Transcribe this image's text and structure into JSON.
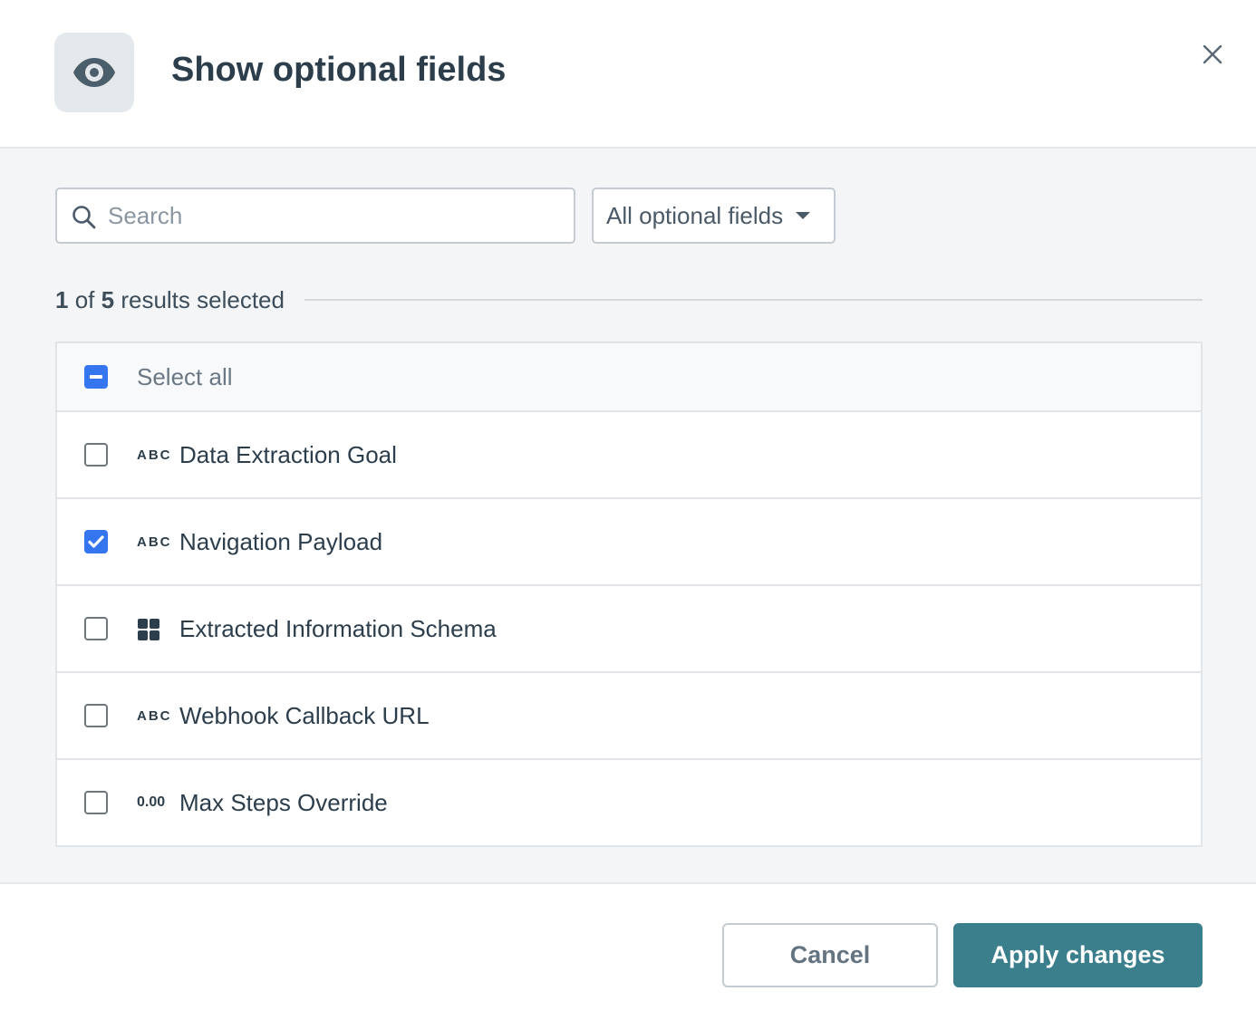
{
  "header": {
    "title": "Show optional fields",
    "icon": "eye-icon",
    "close_icon": "close-icon"
  },
  "filters": {
    "search_placeholder": "Search",
    "search_value": "",
    "dropdown_value": "All optional fields"
  },
  "results": {
    "selected": "1",
    "of": "of",
    "total": "5",
    "suffix": "results selected"
  },
  "list": {
    "select_all": {
      "label": "Select all",
      "state": "indeterminate"
    },
    "items": [
      {
        "label": "Data Extraction Goal",
        "type": "ABC",
        "checked": false
      },
      {
        "label": "Navigation Payload",
        "type": "ABC",
        "checked": true
      },
      {
        "label": "Extracted Information Schema",
        "type": "grid-icon",
        "checked": false
      },
      {
        "label": "Webhook Callback URL",
        "type": "ABC",
        "checked": false
      },
      {
        "label": "Max Steps Override",
        "type": "0.00",
        "checked": false
      }
    ]
  },
  "footer": {
    "cancel_label": "Cancel",
    "apply_label": "Apply changes"
  },
  "colors": {
    "accent": "#3c7f8c",
    "checkbox": "#3575f0",
    "text": "#2c3e4c"
  }
}
